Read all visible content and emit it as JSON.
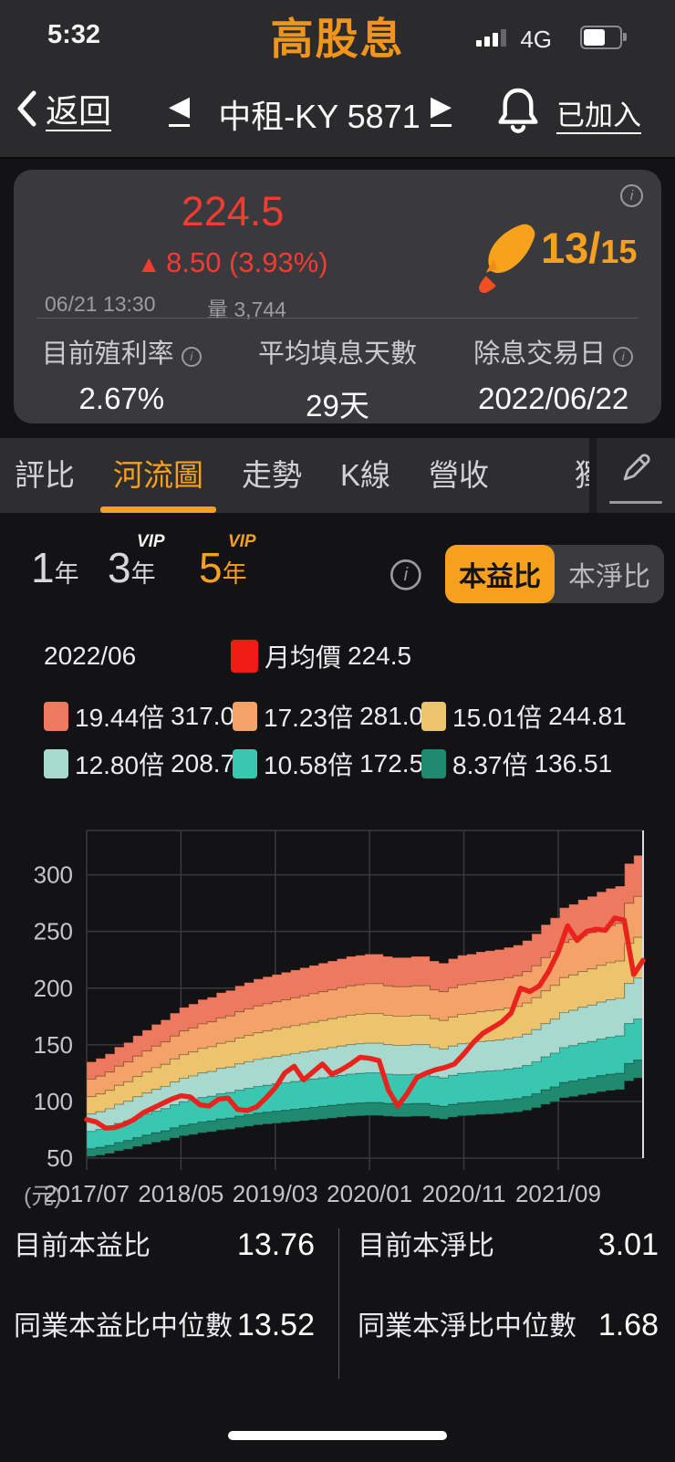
{
  "status_bar": {
    "time": "5:32",
    "app_title": "高股息",
    "network_label": "4G"
  },
  "nav": {
    "back_label": "返回",
    "prev_icon": "◀",
    "stock_name": "中租-KY 5871",
    "next_icon": "▶",
    "joined_label": "已加入"
  },
  "quote_card": {
    "price": "224.5",
    "change_direction": "up",
    "change_text": "8.50 (3.93%)",
    "timestamp": "06/21 13:30",
    "volume_label": "量",
    "volume_value": "3,744",
    "rocket_score": "13",
    "score_separator": "/",
    "rocket_total": "15",
    "stats": [
      {
        "label": "目前殖利率",
        "value": "2.67%",
        "has_info": true
      },
      {
        "label": "平均填息天數",
        "value": "29天",
        "has_info": false
      },
      {
        "label": "除息交易日",
        "value": "2022/06/22",
        "has_info": true
      }
    ]
  },
  "tab_bar": {
    "tabs": [
      "評比",
      "河流圖",
      "走勢",
      "K線",
      "營收"
    ],
    "partial_tab": "獨",
    "active_tab": "河流圖"
  },
  "period_selector": {
    "options": [
      {
        "num": "1",
        "unit": "年",
        "vip": false,
        "active": false
      },
      {
        "num": "3",
        "unit": "年",
        "vip": true,
        "active": false
      },
      {
        "num": "5",
        "unit": "年",
        "vip": true,
        "active": true
      }
    ],
    "vip_badge": "VIP"
  },
  "metric_toggle": {
    "options": [
      "本益比",
      "本淨比"
    ],
    "selected": "本益比"
  },
  "legend": {
    "current_month": "2022/06",
    "price_series": {
      "label": "月均價",
      "value": "224.5",
      "color": "#f21a14"
    },
    "bands": [
      {
        "multiple": "19.44倍",
        "value": "317.07",
        "color": "#ed7a5f"
      },
      {
        "multiple": "17.23倍",
        "value": "281.02",
        "color": "#f4a368"
      },
      {
        "multiple": "15.01倍",
        "value": "244.81",
        "color": "#ecc46d"
      },
      {
        "multiple": "12.80倍",
        "value": "208.77",
        "color": "#a8d9cf"
      },
      {
        "multiple": "10.58倍",
        "value": "172.56",
        "color": "#39c7b1"
      },
      {
        "multiple": "8.37倍",
        "value": "136.51",
        "color": "#208a71"
      }
    ]
  },
  "chart_data": {
    "type": "area",
    "subtype": "pe-river-chart",
    "unit_label": "(元)",
    "x_start": "2017/07",
    "x_end": "2022/06",
    "points": 60,
    "x_tick_labels": [
      "2017/07",
      "2018/05",
      "2019/03",
      "2020/01",
      "2020/11",
      "2021/09"
    ],
    "x_tick_month_indexes": [
      0,
      10,
      20,
      30,
      40,
      50
    ],
    "y_ticks": [
      50,
      100,
      150,
      200,
      250,
      300
    ],
    "ylim": [
      50,
      339
    ],
    "grid": true,
    "grid_color": "#3a3a3d",
    "axis_text_color": "#c5c5c8",
    "right_axis_color": "#dcdcde",
    "pe_band_multiples": [
      19.44,
      17.23,
      15.01,
      12.8,
      10.58,
      8.37
    ],
    "band_bottom_multiple": 7.4,
    "band_colors": [
      "#ed7a5f",
      "#f4a368",
      "#ecc46d",
      "#a8d9cf",
      "#39c7b1",
      "#208a71"
    ],
    "band_top_values": [
      135,
      138,
      142,
      148,
      152,
      158,
      163,
      168,
      172,
      178,
      183,
      186,
      190,
      192,
      196,
      198,
      202,
      205,
      208,
      210,
      212,
      214,
      216,
      218,
      220,
      222,
      224,
      226,
      228,
      229,
      230,
      230,
      228,
      227,
      227,
      228,
      228,
      224,
      222,
      226,
      229,
      230,
      232,
      233,
      234,
      236,
      238,
      242,
      248,
      256,
      262,
      271,
      274,
      278,
      281,
      285,
      288,
      290,
      310,
      317.07
    ],
    "series": [
      {
        "name": "月均價",
        "type": "line",
        "color": "#e8231e",
        "values": [
          84,
          82,
          76.5,
          77,
          80,
          84,
          90,
          94,
          98,
          102,
          105,
          104,
          97,
          96,
          102,
          103,
          93,
          92,
          95,
          103,
          112,
          125,
          131,
          119,
          126,
          133,
          124,
          128,
          133,
          139,
          138,
          136,
          110,
          96,
          107,
          121,
          125,
          128,
          130,
          133,
          142,
          152,
          160,
          165,
          170,
          178,
          200,
          197,
          202,
          215,
          232,
          255,
          242,
          250,
          252,
          251,
          262,
          260,
          212,
          224.5
        ]
      }
    ]
  },
  "bottom_stats": {
    "left": [
      {
        "label": "目前本益比",
        "value": "13.76"
      },
      {
        "label": "同業本益比中位數",
        "value": "13.52"
      }
    ],
    "right": [
      {
        "label": "目前本淨比",
        "value": "3.01"
      },
      {
        "label": "同業本淨比中位數",
        "value": "1.68"
      }
    ]
  }
}
